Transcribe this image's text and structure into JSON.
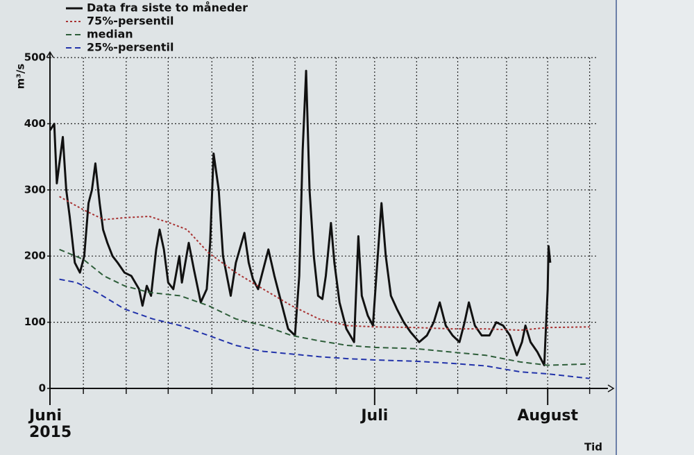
{
  "chart_data": {
    "type": "line",
    "legend": "top-left",
    "y_label": "m³/s",
    "x_label": "Tid",
    "year": "2015",
    "xlim": [
      0,
      64
    ],
    "ylim": [
      0,
      500
    ],
    "yticks": [
      0,
      100,
      200,
      300,
      400,
      500
    ],
    "xticks": [
      {
        "value": 0,
        "label": "Juni"
      },
      {
        "value": 37.9,
        "label": "Juli"
      },
      {
        "value": 58.1,
        "label": "August"
      }
    ],
    "xgrid": [
      0,
      3.9,
      8.9,
      13.8,
      18.9,
      23.7,
      28.6,
      33.4,
      37.9,
      42.8,
      47.6,
      53.3,
      58.1,
      63.0
    ],
    "grid": true,
    "series": [
      {
        "name": "Data fra siste to måneder",
        "color": "#111111",
        "style": "solid",
        "x": [
          0,
          0.5,
          0.8,
          1.5,
          1.9,
          2.3,
          2.9,
          3.5,
          4.0,
          4.5,
          4.9,
          5.3,
          5.8,
          6.2,
          6.7,
          7.3,
          7.9,
          8.7,
          9.5,
          10.4,
          10.8,
          11.3,
          11.8,
          12.4,
          12.8,
          13.3,
          13.8,
          14.4,
          15.1,
          15.4,
          16.2,
          16.8,
          17.6,
          18.3,
          18.7,
          19.1,
          19.7,
          20.2,
          21.1,
          21.7,
          22.7,
          23.2,
          23.7,
          24.3,
          24.9,
          25.5,
          26.2,
          27.0,
          27.8,
          28.6,
          29.1,
          29.5,
          29.9,
          30.3,
          30.8,
          31.3,
          31.8,
          32.2,
          32.8,
          33.2,
          33.8,
          34.6,
          35.5,
          36.0,
          36.4,
          37.1,
          37.7,
          38.1,
          38.7,
          39.2,
          39.8,
          40.5,
          41.3,
          42.1,
          43.1,
          44.0,
          44.8,
          45.5,
          46.2,
          47.0,
          47.8,
          48.4,
          48.9,
          49.6,
          50.4,
          51.3,
          52.1,
          52.9,
          53.7,
          54.5,
          55.1,
          55.5,
          56.1,
          56.9,
          57.7,
          58.1,
          58.2,
          58.4
        ],
        "values": [
          390,
          400,
          310,
          380,
          300,
          260,
          190,
          175,
          200,
          280,
          300,
          340,
          280,
          240,
          220,
          200,
          190,
          175,
          170,
          150,
          125,
          155,
          140,
          210,
          240,
          210,
          160,
          150,
          200,
          160,
          220,
          180,
          130,
          150,
          220,
          355,
          300,
          200,
          140,
          190,
          235,
          190,
          165,
          150,
          180,
          210,
          170,
          130,
          90,
          80,
          170,
          360,
          480,
          300,
          200,
          140,
          135,
          170,
          250,
          190,
          130,
          90,
          70,
          230,
          140,
          110,
          95,
          170,
          280,
          200,
          140,
          120,
          100,
          85,
          70,
          80,
          100,
          130,
          95,
          80,
          70,
          100,
          130,
          95,
          80,
          80,
          100,
          95,
          80,
          50,
          70,
          95,
          70,
          55,
          35,
          150,
          215,
          190
        ]
      },
      {
        "name": "75%-persentil",
        "color": "#a83232",
        "style": "dotted",
        "x": [
          1.1,
          3.9,
          6.3,
          8.7,
          11.6,
          14.0,
          16.0,
          18.5,
          21.7,
          24.9,
          28.2,
          31.4,
          34.7,
          37.9,
          42.8,
          46.8,
          50.9,
          54.9,
          58.1,
          63.0
        ],
        "values": [
          290,
          270,
          255,
          258,
          260,
          250,
          240,
          205,
          175,
          150,
          125,
          105,
          95,
          93,
          92,
          90,
          90,
          88,
          92,
          93
        ]
      },
      {
        "name": "median",
        "color": "#2e5e3a",
        "style": "dashed",
        "x": [
          1.1,
          3.9,
          6.3,
          8.7,
          11.6,
          15.2,
          18.5,
          21.7,
          24.9,
          28.2,
          31.4,
          34.7,
          37.9,
          42.8,
          46.8,
          50.9,
          54.9,
          58.1,
          63.0
        ],
        "values": [
          210,
          195,
          170,
          155,
          145,
          140,
          125,
          105,
          95,
          80,
          72,
          65,
          62,
          60,
          55,
          50,
          40,
          35,
          37
        ]
      },
      {
        "name": "25%-persentil",
        "color": "#2233aa",
        "style": "dashed",
        "x": [
          1.1,
          3.1,
          5.5,
          8.7,
          12.0,
          15.2,
          18.5,
          21.7,
          24.9,
          28.2,
          31.4,
          34.7,
          37.9,
          42.8,
          46.8,
          50.9,
          54.9,
          58.1,
          63.0
        ],
        "values": [
          165,
          160,
          145,
          120,
          105,
          95,
          80,
          65,
          56,
          52,
          48,
          45,
          43,
          41,
          38,
          34,
          25,
          22,
          15
        ]
      }
    ]
  }
}
